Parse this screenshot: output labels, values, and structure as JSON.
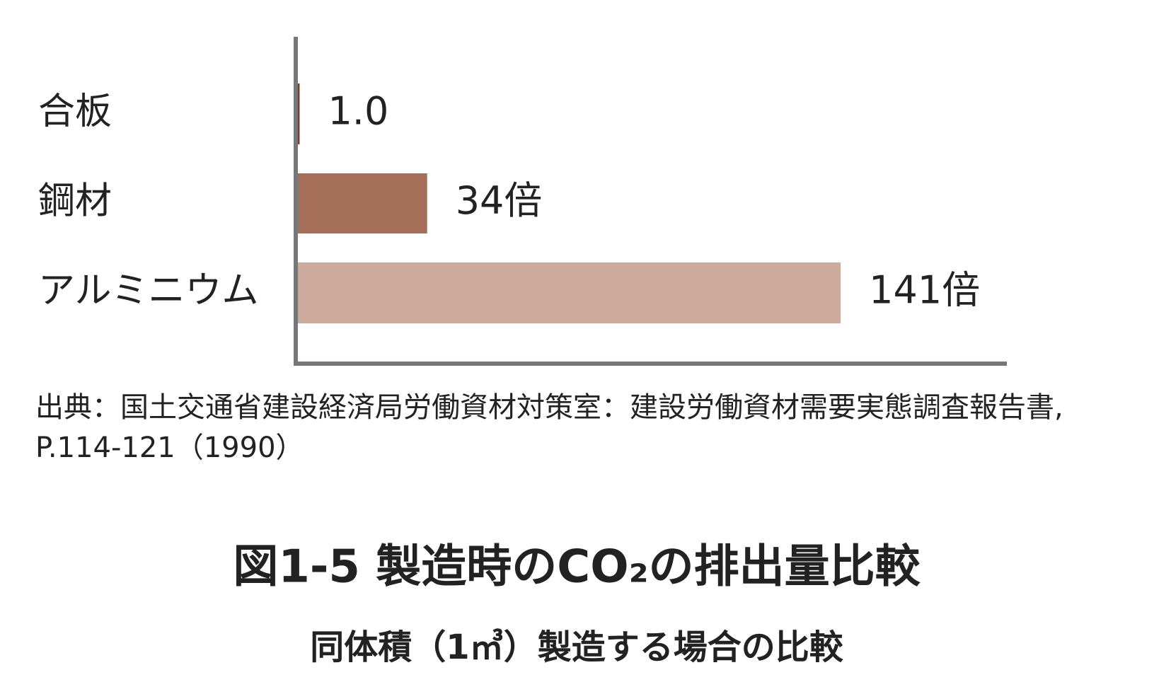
{
  "chart_data": {
    "type": "bar",
    "orientation": "horizontal",
    "categories": [
      "合板",
      "鋼材",
      "アルミニウム"
    ],
    "values": [
      1.0,
      34,
      141
    ],
    "value_labels": [
      "1.0",
      "34倍",
      "141倍"
    ],
    "colors": [
      "#8b3a22",
      "#a56e58",
      "#cdab9c"
    ],
    "xlim": [
      0,
      184
    ],
    "source": "出典：国土交通省建設経済局労働資材対策室：建設労働資材需要実態調査報告書, P.114-121（1990）",
    "title": "図1-5  製造時のCO₂の排出量比較",
    "subtitle": "同体積（1㎥）製造する場合の比較"
  }
}
